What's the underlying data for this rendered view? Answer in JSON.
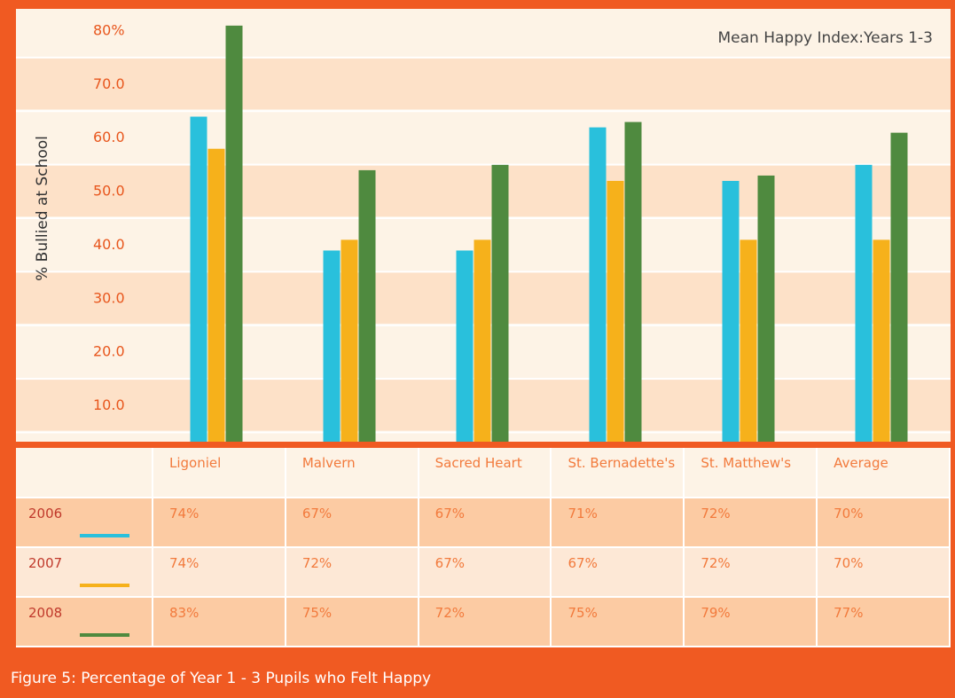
{
  "chart_data": {
    "type": "bar",
    "annotation": "Mean Happy Index:Years 1-3",
    "ylabel": "% Bullied at School",
    "categories": [
      "Ligoniel",
      "Malvern",
      "Sacred Heart",
      "St. Bernadette's",
      "St. Matthew's",
      "Average"
    ],
    "series": [
      {
        "name": "2006",
        "color": "#29c0dc",
        "values": [
          64,
          39,
          39,
          62,
          52,
          55
        ]
      },
      {
        "name": "2007",
        "color": "#f6b11b",
        "values": [
          58,
          41,
          41,
          52,
          41,
          41
        ]
      },
      {
        "name": "2008",
        "color": "#4f8a3f",
        "values": [
          81,
          54,
          55,
          63,
          53,
          61
        ]
      }
    ],
    "ylim": [
      3.3,
      83.3
    ],
    "yticks": [
      {
        "value": 10,
        "label": "10.0"
      },
      {
        "value": 20,
        "label": "20.0"
      },
      {
        "value": 30,
        "label": "30.0"
      },
      {
        "value": 40,
        "label": "40.0"
      },
      {
        "value": 50,
        "label": "50.0"
      },
      {
        "value": 60,
        "label": "60.0"
      },
      {
        "value": 70,
        "label": "70.0"
      },
      {
        "value": 80,
        "label": "80%"
      }
    ]
  },
  "table": {
    "rows": [
      [
        "74%",
        "67%",
        "67%",
        "71%",
        "72%",
        "70%"
      ],
      [
        "74%",
        "72%",
        "67%",
        "67%",
        "72%",
        "70%"
      ],
      [
        "83%",
        "75%",
        "72%",
        "75%",
        "79%",
        "77%"
      ]
    ]
  },
  "caption": "Figure 5: Percentage of Year 1 - 3 Pupils who Felt Happy"
}
